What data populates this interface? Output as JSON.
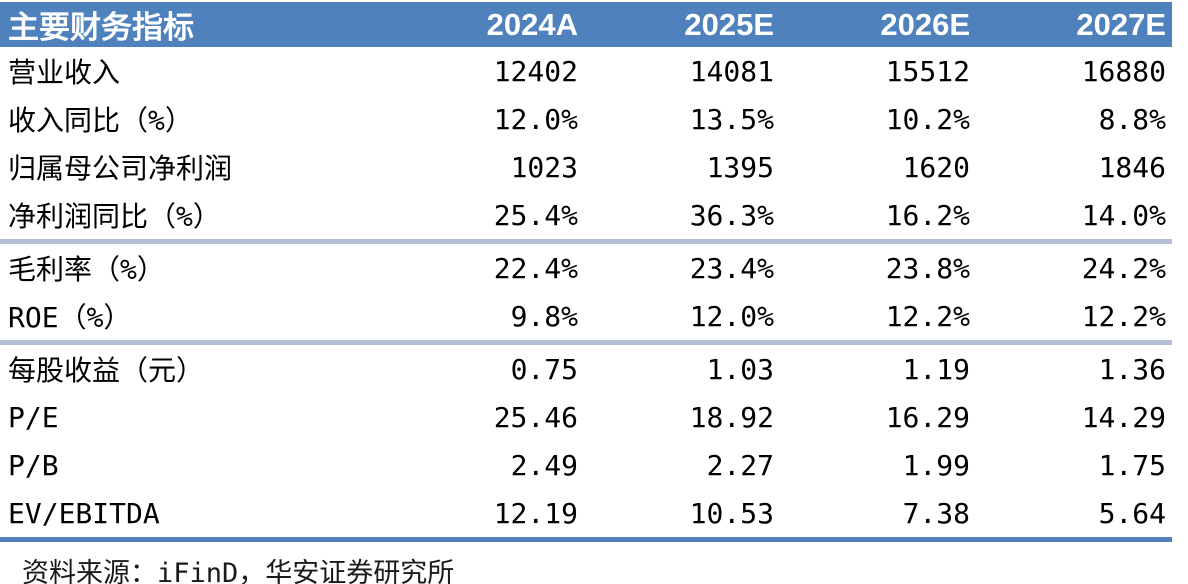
{
  "table": {
    "header": {
      "label": "主要财务指标",
      "columns": [
        "2024A",
        "2025E",
        "2026E",
        "2027E"
      ]
    },
    "rows": [
      {
        "label": "营业收入",
        "values": [
          "12402",
          "14081",
          "15512",
          "16880"
        ]
      },
      {
        "label": "收入同比（%）",
        "values": [
          "12.0%",
          "13.5%",
          "10.2%",
          "8.8%"
        ]
      },
      {
        "label": "归属母公司净利润",
        "values": [
          "1023",
          "1395",
          "1620",
          "1846"
        ]
      },
      {
        "label": "净利润同比（%）",
        "values": [
          "25.4%",
          "36.3%",
          "16.2%",
          "14.0%"
        ]
      },
      {
        "label": "毛利率（%）",
        "values": [
          "22.4%",
          "23.4%",
          "23.8%",
          "24.2%"
        ]
      },
      {
        "label": "ROE（%）",
        "values": [
          "9.8%",
          "12.0%",
          "12.2%",
          "12.2%"
        ]
      },
      {
        "label": "每股收益（元）",
        "values": [
          "0.75",
          "1.03",
          "1.19",
          "1.36"
        ]
      },
      {
        "label": "P/E",
        "values": [
          "25.46",
          "18.92",
          "16.29",
          "14.29"
        ]
      },
      {
        "label": "P/B",
        "values": [
          "2.49",
          "2.27",
          "1.99",
          "1.75"
        ]
      },
      {
        "label": "EV/EBITDA",
        "values": [
          "12.19",
          "10.53",
          "7.38",
          "5.64"
        ]
      }
    ],
    "source_note": "资料来源：iFinD，华安证券研究所"
  },
  "colors": {
    "header_bg": "#4F81BD",
    "header_text": "#FFFFFF",
    "section_divider": "#B3BFD5",
    "bottom_border": "#4E7FBC",
    "body_text": "#000000"
  }
}
